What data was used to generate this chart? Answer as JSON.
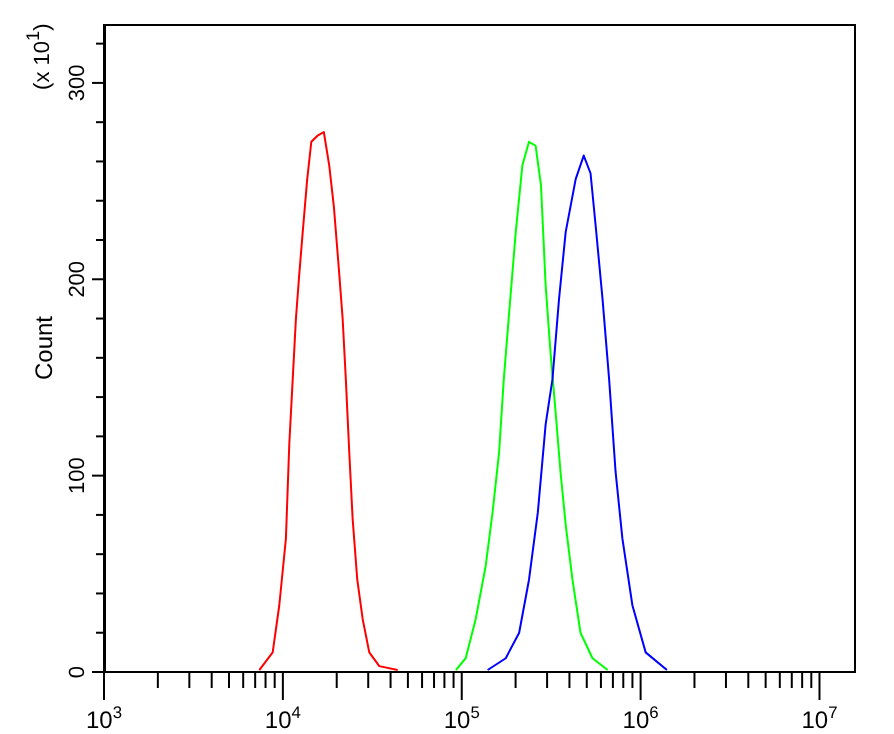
{
  "chart_data": {
    "type": "line",
    "ylabel": "Count",
    "annotations": [
      "(x 10$^{1}$)"
    ],
    "log": "x",
    "grid": false,
    "legend": false,
    "marker": "none",
    "line_style": "solid",
    "xlim": [
      1000,
      16000000
    ],
    "xticks": [
      {
        "value": 1000,
        "label": "10$^{3}$"
      },
      {
        "value": 2000,
        "label": null
      },
      {
        "value": 3000,
        "label": null
      },
      {
        "value": 4000,
        "label": null
      },
      {
        "value": 5000,
        "label": null
      },
      {
        "value": 6000,
        "label": null
      },
      {
        "value": 7000,
        "label": null
      },
      {
        "value": 8000,
        "label": null
      },
      {
        "value": 9000,
        "label": null
      },
      {
        "value": 10000,
        "label": "10$^{4}$"
      },
      {
        "value": 20000,
        "label": null
      },
      {
        "value": 30000,
        "label": null
      },
      {
        "value": 40000,
        "label": null
      },
      {
        "value": 50000,
        "label": null
      },
      {
        "value": 60000,
        "label": null
      },
      {
        "value": 70000,
        "label": null
      },
      {
        "value": 80000,
        "label": null
      },
      {
        "value": 90000,
        "label": null
      },
      {
        "value": 100000,
        "label": "10$^{5}$"
      },
      {
        "value": 200000,
        "label": null
      },
      {
        "value": 300000,
        "label": null
      },
      {
        "value": 400000,
        "label": null
      },
      {
        "value": 500000,
        "label": null
      },
      {
        "value": 600000,
        "label": null
      },
      {
        "value": 700000,
        "label": null
      },
      {
        "value": 800000,
        "label": null
      },
      {
        "value": 900000,
        "label": null
      },
      {
        "value": 1000000,
        "label": "10$^{6}$"
      },
      {
        "value": 2000000,
        "label": null
      },
      {
        "value": 3000000,
        "label": null
      },
      {
        "value": 4000000,
        "label": null
      },
      {
        "value": 5000000,
        "label": null
      },
      {
        "value": 6000000,
        "label": null
      },
      {
        "value": 7000000,
        "label": null
      },
      {
        "value": 8000000,
        "label": null
      },
      {
        "value": 9000000,
        "label": null
      },
      {
        "value": 10000000,
        "label": "10$^{7}$"
      }
    ],
    "ylim": [
      0,
      330
    ],
    "yticks": [
      0,
      {
        "value": 20,
        "label": null
      },
      {
        "value": 40,
        "label": null
      },
      {
        "value": 60,
        "label": null
      },
      {
        "value": 80,
        "label": null
      },
      100,
      {
        "value": 120,
        "label": null
      },
      {
        "value": 140,
        "label": null
      },
      {
        "value": 160,
        "label": null
      },
      {
        "value": 180,
        "label": null
      },
      200,
      {
        "value": 220,
        "label": null
      },
      {
        "value": 240,
        "label": null
      },
      {
        "value": 260,
        "label": null
      },
      {
        "value": 280,
        "label": null
      },
      300,
      {
        "value": 320,
        "label": null
      }
    ],
    "series": [
      {
        "color": "#ff0000",
        "x": [
          7380,
          8770,
          9550,
          10400,
          10860,
          11350,
          11830,
          12360,
          12910,
          13680,
          14420,
          15560,
          16940,
          18160,
          19280,
          20650,
          21580,
          22490,
          23500,
          24550,
          26060,
          27930,
          30410,
          34590,
          43850
        ],
        "values": [
          1,
          10,
          34,
          68,
          116,
          149,
          180,
          203,
          224,
          251,
          270,
          273,
          275,
          258,
          237,
          203,
          180,
          149,
          112,
          78,
          47,
          27,
          10,
          3,
          1
        ]
      },
      {
        "color": "#00ff00",
        "x": [
          92700,
          105200,
          119700,
          136100,
          148600,
          161800,
          171800,
          184100,
          200400,
          218300,
          237700,
          258800,
          277300,
          294400,
          313300,
          335000,
          356500,
          381100,
          415900,
          461300,
          538300,
          654600
        ],
        "values": [
          1,
          7,
          27,
          54,
          81,
          112,
          149,
          183,
          224,
          258,
          270,
          268,
          248,
          197,
          163,
          132,
          102,
          75,
          47,
          20,
          7,
          1
        ]
      },
      {
        "color": "#0000ff",
        "x": [
          139600,
          176200,
          209400,
          237700,
          266100,
          294400,
          321400,
          349900,
          381100,
          433500,
          480800,
          524800,
          561000,
          612400,
          666800,
          724400,
          790700,
          899500,
          1067000,
          1403000
        ],
        "values": [
          1,
          7,
          20,
          47,
          81,
          126,
          149,
          190,
          224,
          251,
          263,
          254,
          227,
          190,
          149,
          102,
          68,
          34,
          10,
          1
        ]
      }
    ]
  }
}
